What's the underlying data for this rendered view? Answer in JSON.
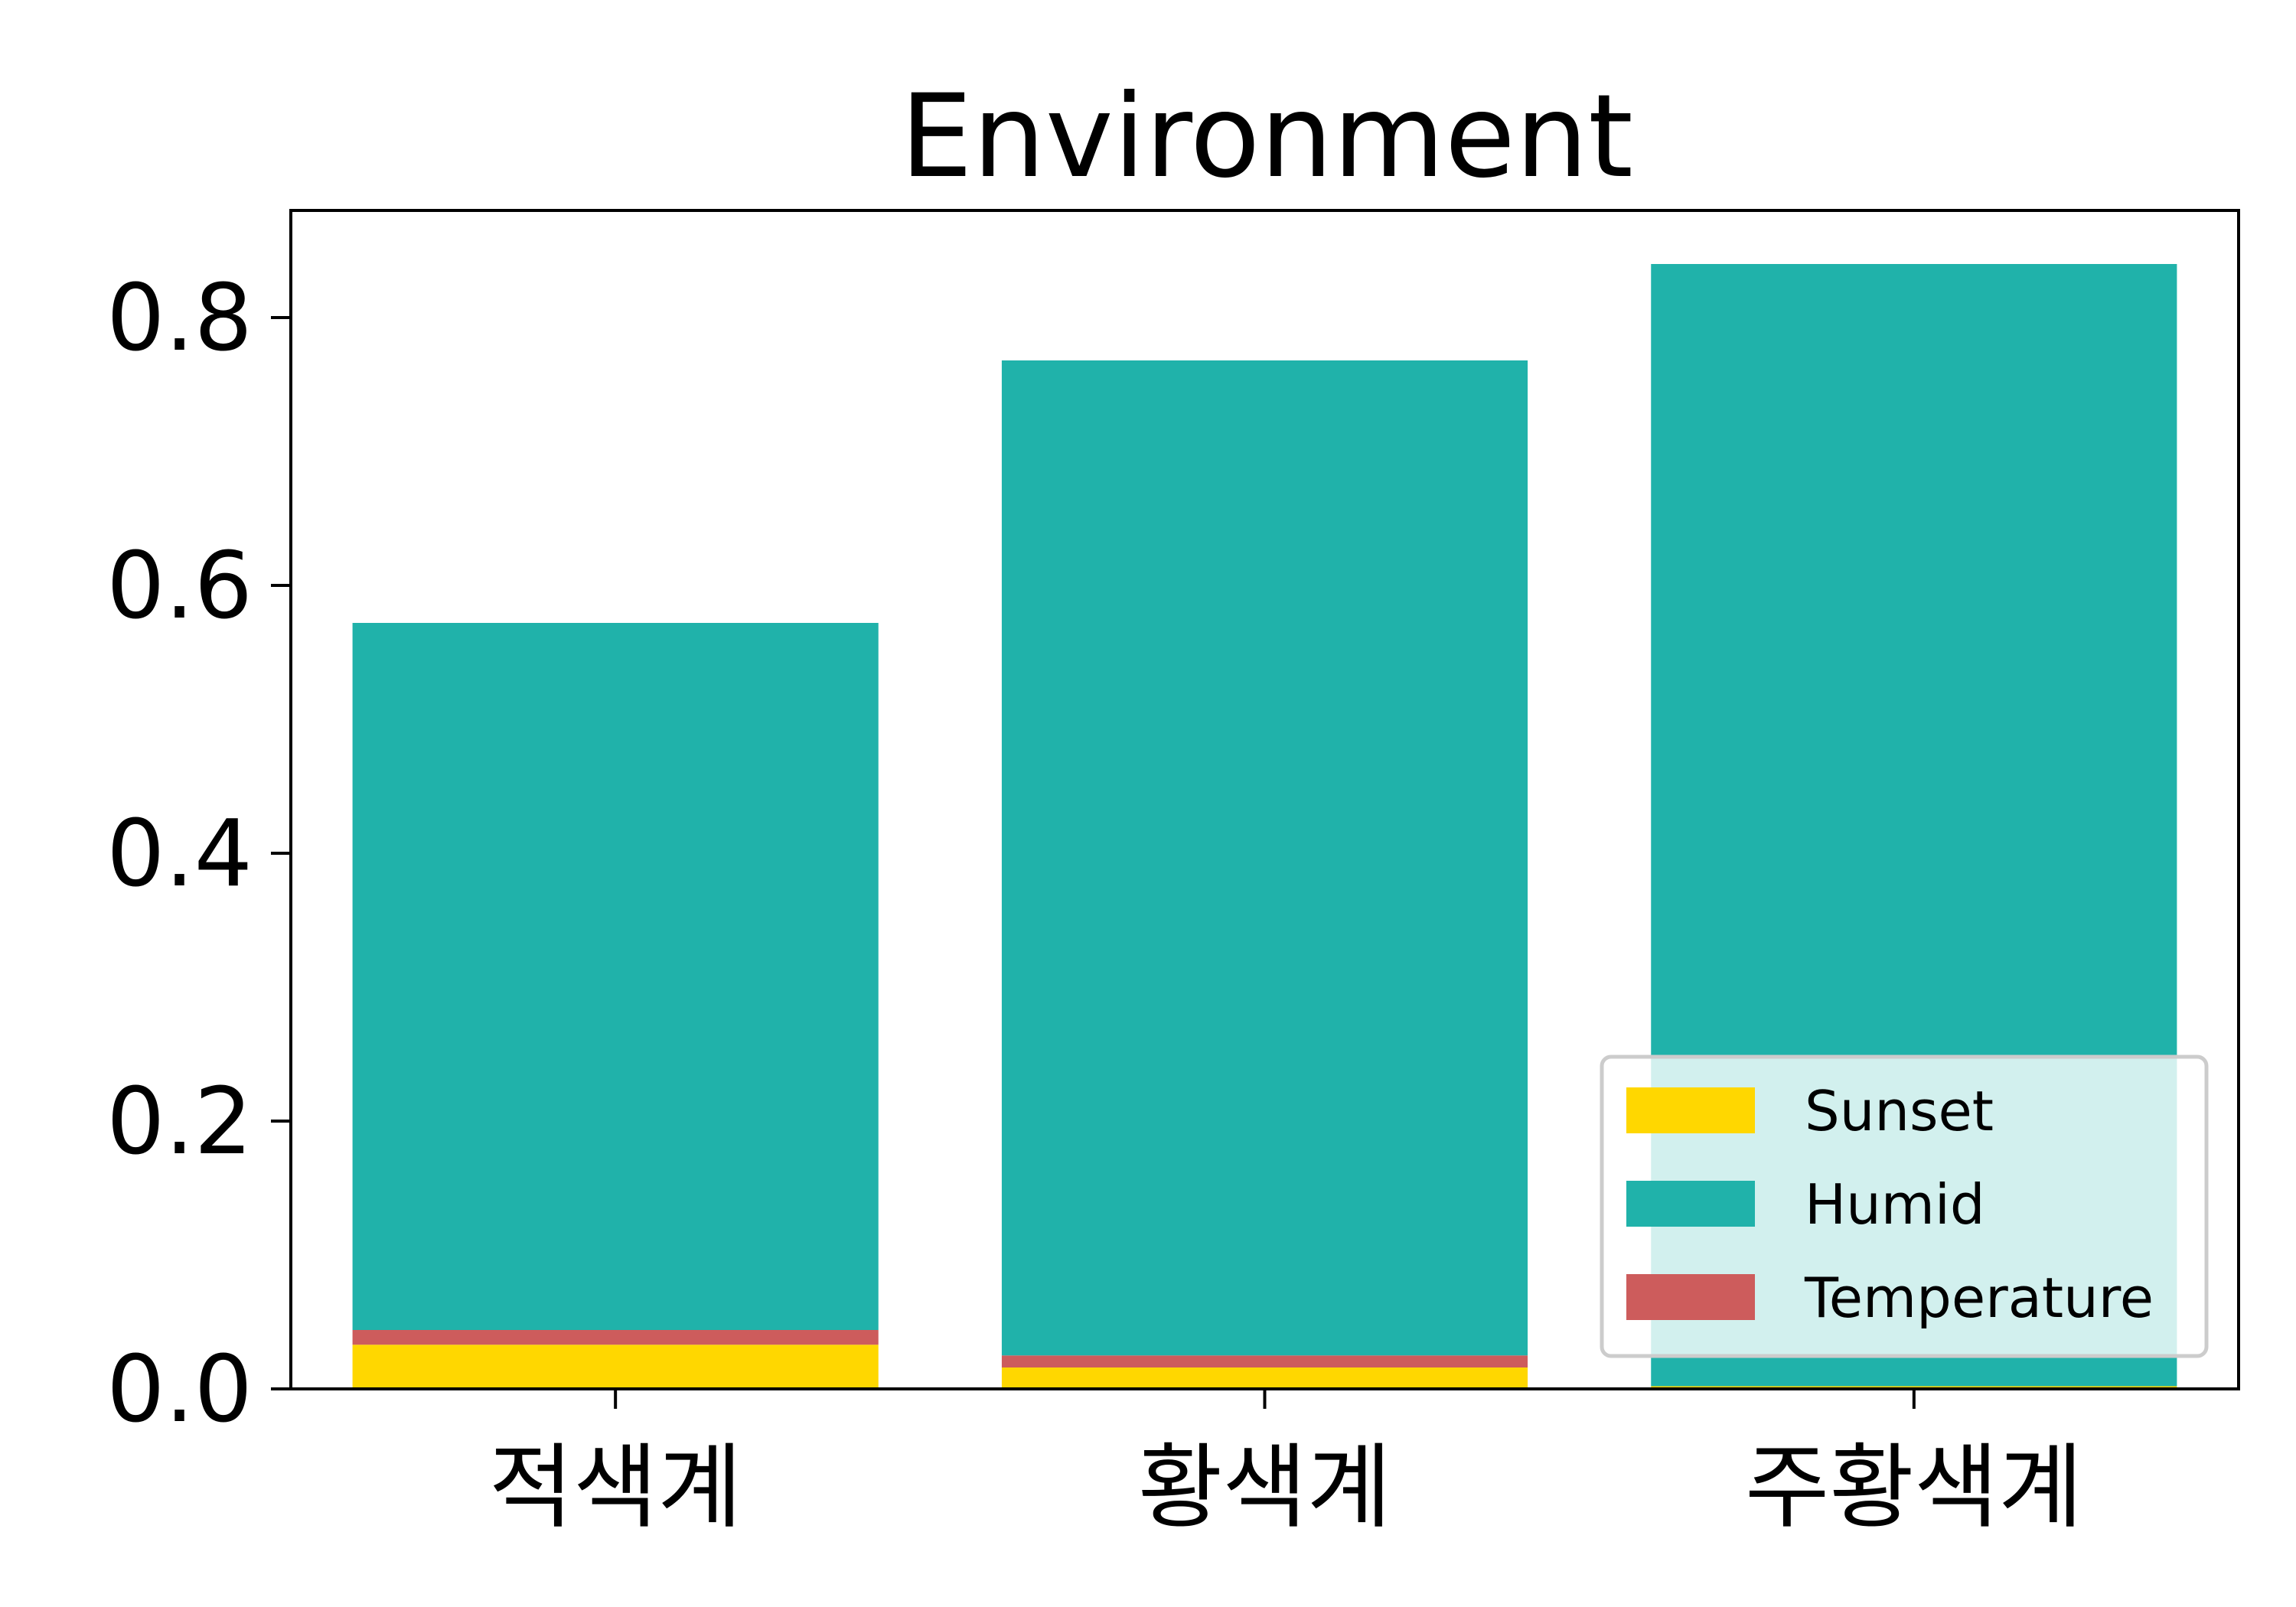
{
  "chart_data": {
    "type": "bar",
    "stacked": true,
    "title": "Environment",
    "xlabel": "",
    "ylabel": "",
    "categories": [
      "적색계",
      "황색계",
      "주황색계"
    ],
    "series": [
      {
        "name": "Sunset",
        "color": "#FFD700",
        "values": [
          0.033,
          0.016,
          0.002
        ]
      },
      {
        "name": "Temperature",
        "color": "#CD5C5C",
        "values": [
          0.011,
          0.009,
          0.0
        ]
      },
      {
        "name": "Humid",
        "color": "#20B2AA",
        "values": [
          0.528,
          0.743,
          0.838
        ]
      }
    ],
    "legend_order": [
      "Sunset",
      "Humid",
      "Temperature"
    ],
    "ylim": [
      0,
      0.88
    ],
    "yticks": [
      "0.0",
      "0.2",
      "0.4",
      "0.6",
      "0.8"
    ],
    "ytick_values": [
      0,
      0.2,
      0.4,
      0.6,
      0.8
    ],
    "legend_position": "lower-right",
    "grid": false
  }
}
